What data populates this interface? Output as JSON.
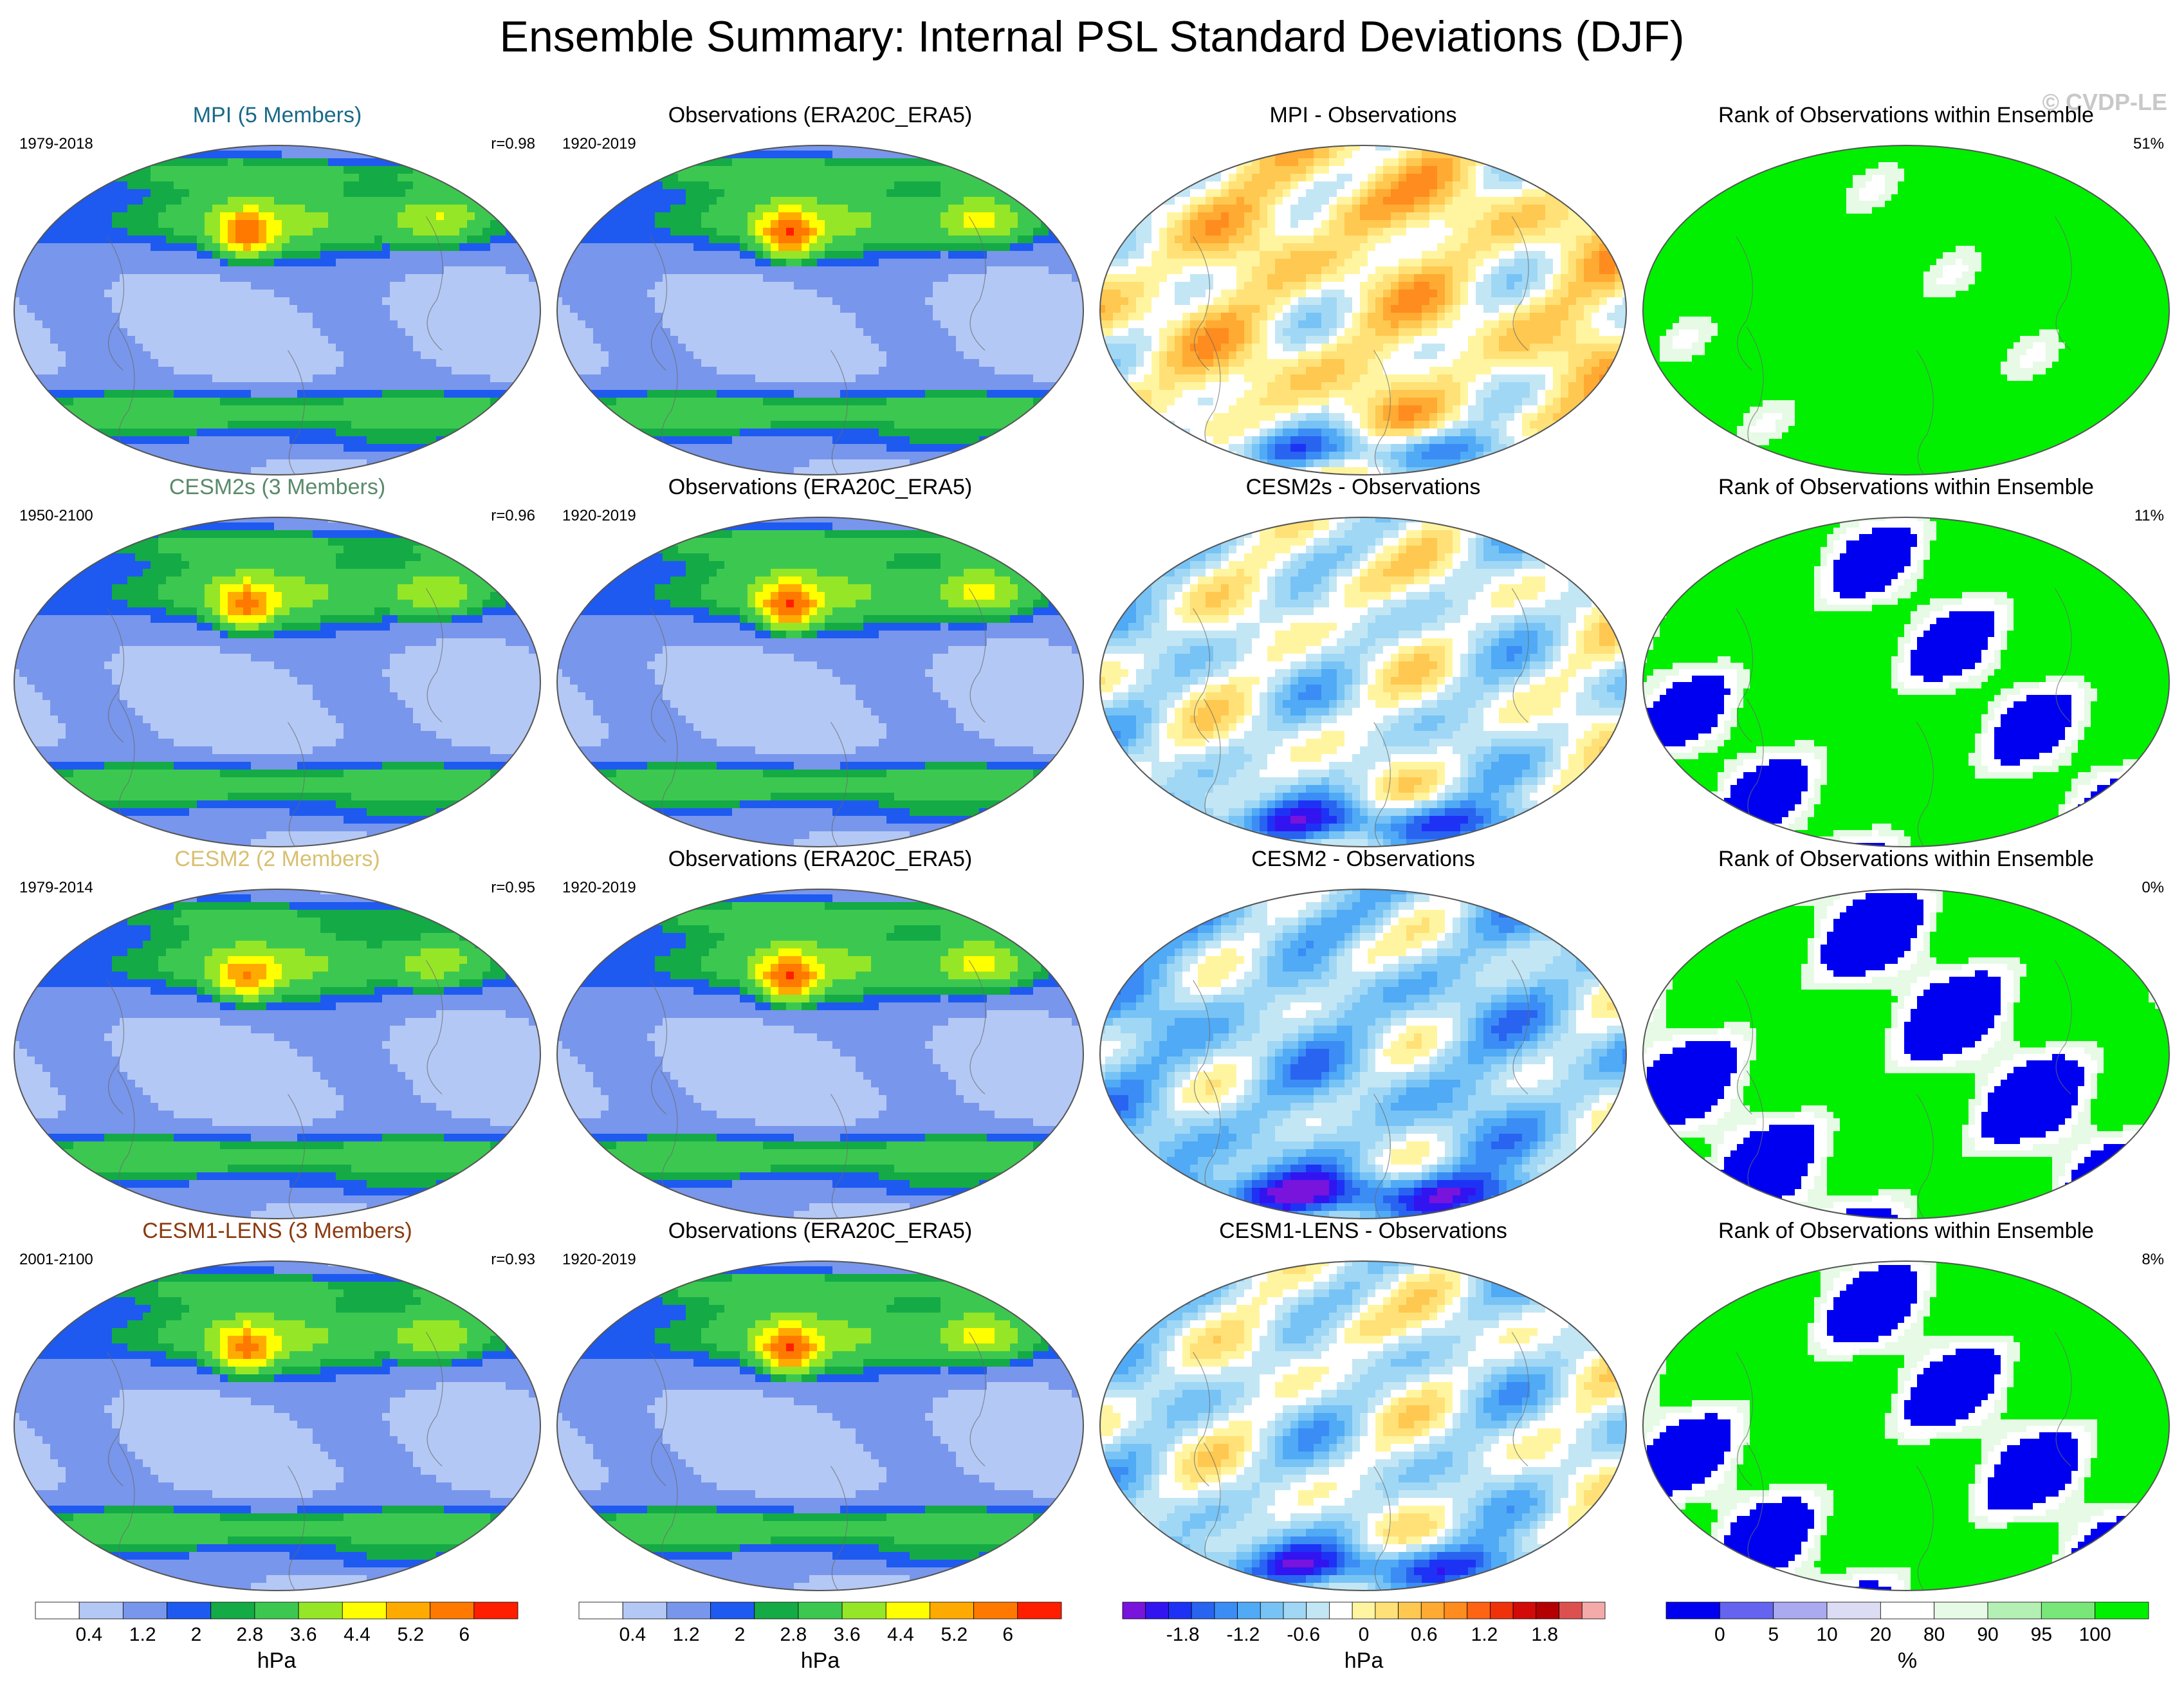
{
  "title": "Ensemble Summary: Internal PSL Standard Deviations (DJF)",
  "watermark": "© CVDP-LE",
  "rows": [
    {
      "model": {
        "name": "MPI (5 Members)",
        "name_color": "#1a6a8a",
        "period": "1979-2018",
        "r": "r=0.98",
        "scheme": "model",
        "strength": 0.9
      },
      "obs": {
        "name": "Observations (ERA20C_ERA5)",
        "period": "1920-2019",
        "scheme": "model",
        "strength": 1.0
      },
      "diff": {
        "name": "MPI - Observations",
        "scheme": "diff",
        "bias": 0.25
      },
      "rank": {
        "name": "Rank of Observations within Ensemble",
        "pct": "51%",
        "scheme": "rank",
        "bias": 0.55
      }
    },
    {
      "model": {
        "name": "CESM2s (3 Members)",
        "name_color": "#5a8a6a",
        "period": "1950-2100",
        "r": "r=0.96",
        "scheme": "model",
        "strength": 0.85
      },
      "obs": {
        "name": "Observations (ERA20C_ERA5)",
        "period": "1920-2019",
        "scheme": "model",
        "strength": 1.0
      },
      "diff": {
        "name": "CESM2s - Observations",
        "scheme": "diff",
        "bias": -0.15
      },
      "rank": {
        "name": "Rank of Observations within Ensemble",
        "pct": "11%",
        "scheme": "rank",
        "bias": 0.2
      }
    },
    {
      "model": {
        "name": "CESM2 (2 Members)",
        "name_color": "#d8c070",
        "period": "1979-2014",
        "r": "r=0.95",
        "scheme": "model",
        "strength": 0.75
      },
      "obs": {
        "name": "Observations (ERA20C_ERA5)",
        "period": "1920-2019",
        "scheme": "model",
        "strength": 1.0
      },
      "diff": {
        "name": "CESM2 - Observations",
        "scheme": "diff",
        "bias": -0.45
      },
      "rank": {
        "name": "Rank of Observations within Ensemble",
        "pct": "0%",
        "scheme": "rank",
        "bias": 0.1
      }
    },
    {
      "model": {
        "name": "CESM1-LENS (3 Members)",
        "name_color": "#8a3a10",
        "period": "2001-2100",
        "r": "r=0.93",
        "scheme": "model",
        "strength": 0.85
      },
      "obs": {
        "name": "Observations (ERA20C_ERA5)",
        "period": "1920-2019",
        "scheme": "model",
        "strength": 1.0
      },
      "diff": {
        "name": "CESM1-LENS - Observations",
        "scheme": "diff",
        "bias": -0.2
      },
      "rank": {
        "name": "Rank of Observations within Ensemble",
        "pct": "8%",
        "scheme": "rank",
        "bias": 0.15
      }
    }
  ],
  "chart_data": [
    {
      "type": "heatmap",
      "role": "model-std-colorbar",
      "units": "hPa",
      "tick_labels": [
        "0.4",
        "1.2",
        "2",
        "2.8",
        "3.6",
        "4.4",
        "5.2",
        "6"
      ],
      "colors": [
        "#ffffff",
        "#b4c8f5",
        "#7896eb",
        "#1e5af0",
        "#14aa46",
        "#3cc850",
        "#96e628",
        "#ffff00",
        "#ffaa00",
        "#ff7800",
        "#ff1e00"
      ]
    },
    {
      "type": "heatmap",
      "role": "obs-std-colorbar",
      "units": "hPa",
      "tick_labels": [
        "0.4",
        "1.2",
        "2",
        "2.8",
        "3.6",
        "4.4",
        "5.2",
        "6"
      ],
      "colors": [
        "#ffffff",
        "#b4c8f5",
        "#7896eb",
        "#1e5af0",
        "#14aa46",
        "#3cc850",
        "#96e628",
        "#ffff00",
        "#ffaa00",
        "#ff7800",
        "#ff1e00"
      ]
    },
    {
      "type": "heatmap",
      "role": "difference-colorbar",
      "units": "hPa",
      "tick_labels": [
        "-1.8",
        "-1.2",
        "-0.6",
        "0",
        "0.6",
        "1.2",
        "1.8"
      ],
      "colors": [
        "#7814dc",
        "#3214f0",
        "#1e32f5",
        "#2864f0",
        "#3c8cf5",
        "#50aaf5",
        "#78c3f5",
        "#a0d7f5",
        "#c3e6f5",
        "#ffffff",
        "#fff5a0",
        "#ffe178",
        "#ffc850",
        "#ffaa32",
        "#ff8c1e",
        "#ff6414",
        "#f0320a",
        "#d20a0a",
        "#b40000",
        "#dc5050",
        "#f5aaaa"
      ]
    },
    {
      "type": "heatmap",
      "role": "rank-colorbar",
      "units": "%",
      "tick_labels": [
        "0",
        "5",
        "10",
        "20",
        "80",
        "90",
        "95",
        "100"
      ],
      "colors": [
        "#0000f0",
        "#6464f0",
        "#aaaaf0",
        "#dcdcf5",
        "#ffffff",
        "#e6fae6",
        "#b4f0b4",
        "#78e678",
        "#00f000"
      ]
    }
  ]
}
